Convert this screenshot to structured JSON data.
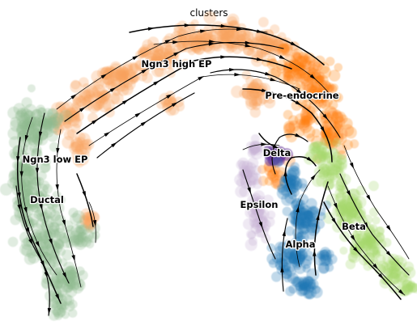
{
  "chart_data": {
    "type": "scatter",
    "title": "clusters",
    "xlabel": "",
    "ylabel": "",
    "legend": "on data",
    "grid": false,
    "axes": false,
    "overlay": "velocity streamlines",
    "series": [
      {
        "name": "Ngn3 high EP",
        "color": "#f7a35c"
      },
      {
        "name": "Pre-endocrine",
        "color": "#ff7f0e"
      },
      {
        "name": "Ngn3 low EP",
        "color": "#8fbc8f"
      },
      {
        "name": "Ductal",
        "color": "#8fbc8f"
      },
      {
        "name": "Delta",
        "color": "#6a3d9a"
      },
      {
        "name": "Epsilon",
        "color": "#c5b0d5"
      },
      {
        "name": "Alpha",
        "color": "#1f77b4"
      },
      {
        "name": "Beta",
        "color": "#a6d96a"
      }
    ]
  }
}
